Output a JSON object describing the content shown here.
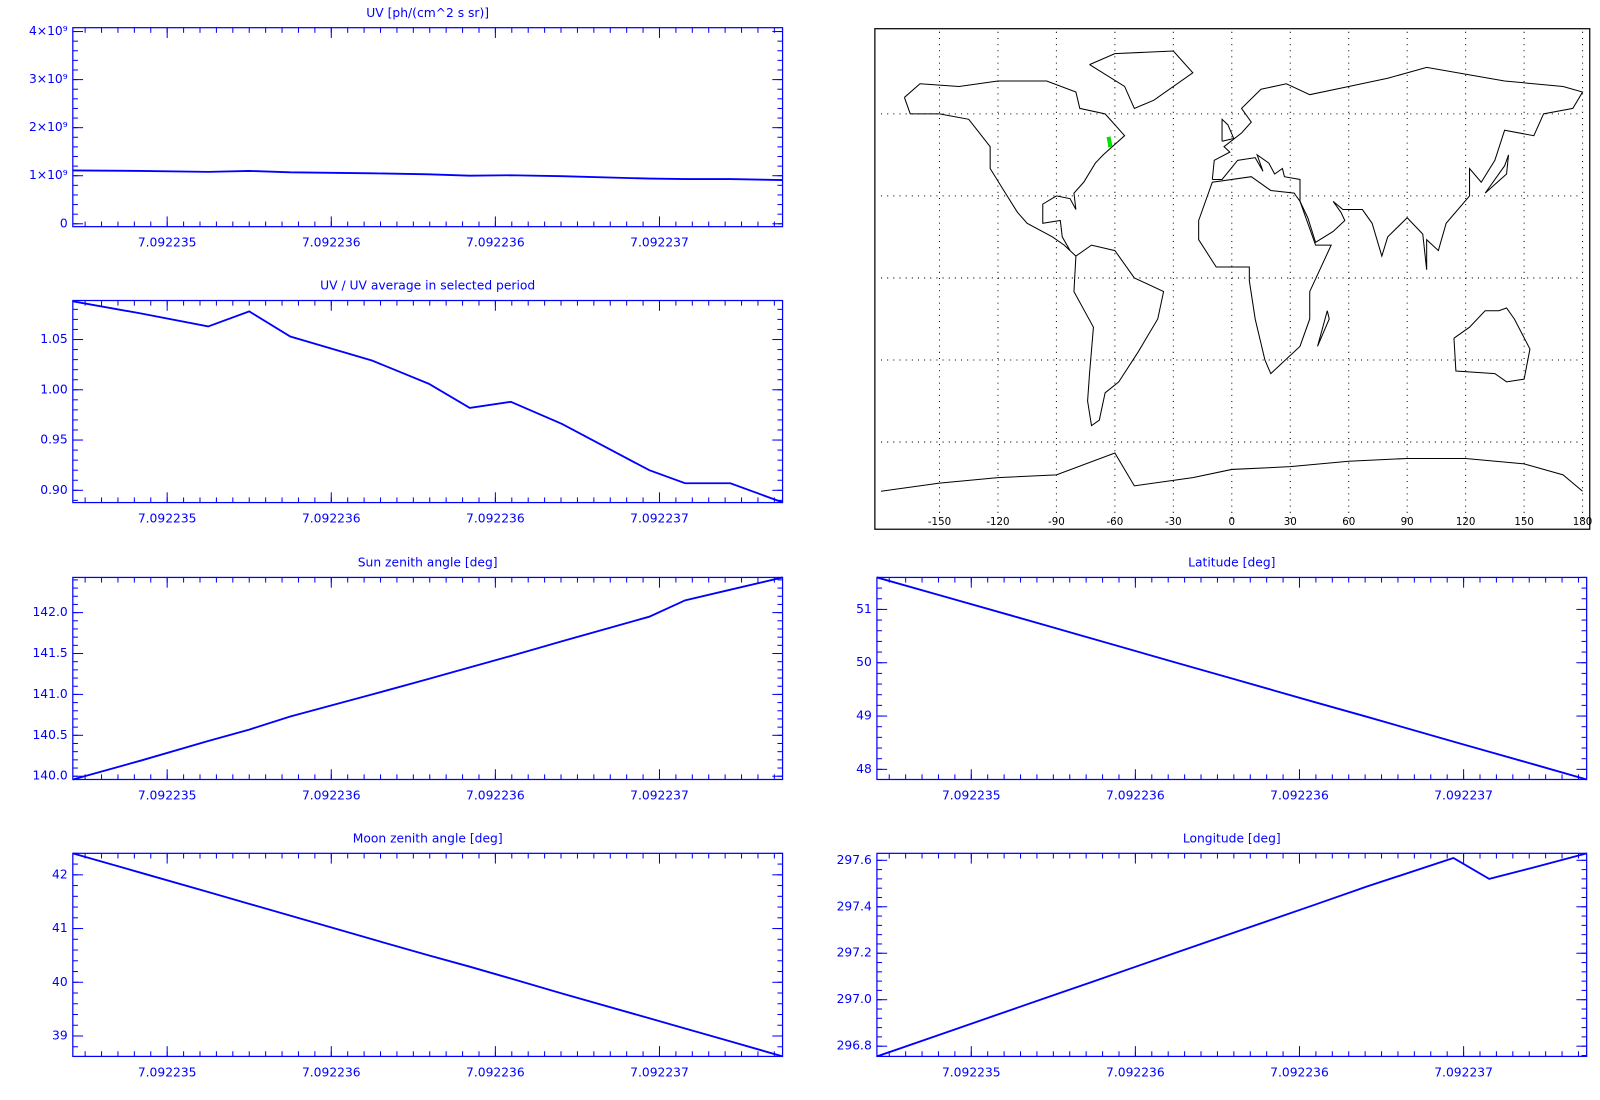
{
  "chart_data": [
    {
      "type": "line",
      "title": "UV [ph/(cm^2 s sr)]",
      "color": "#0000ff",
      "x": [
        7.0922347125,
        7.09223491875,
        7.092235125,
        7.09223525,
        7.092235375,
        7.092235625,
        7.092235797,
        7.092235922,
        7.092236047,
        7.092236203,
        7.092236469,
        7.092236578,
        7.092236716,
        7.092236875
      ],
      "values": [
        1110000000,
        1100000000,
        1080000000,
        1100000000,
        1070000000,
        1050000000,
        1030000000,
        1000000000,
        1010000000,
        990000000,
        940000000,
        930000000,
        930000000,
        910000000
      ],
      "xlim": [
        7.0922347125,
        7.092236875
      ],
      "xticks": [
        7.092235,
        {
          "value": 7.0922355,
          "label": "7.092236"
        },
        7.092236,
        {
          "value": 7.0922365,
          "label": "7.092237"
        }
      ],
      "ylim": [
        -60000000,
        4080000000
      ],
      "yticks": [
        0,
        {
          "value": 1000000000,
          "label": "1×10⁹"
        },
        {
          "value": 2000000000,
          "label": "2×10⁹"
        },
        {
          "value": 3000000000,
          "label": "3×10⁹"
        },
        {
          "value": 4000000000,
          "label": "4×10⁹"
        }
      ]
    },
    {
      "type": "line",
      "title": "UV / UV average in selected period",
      "color": "#0000ff",
      "x": [
        7.0922347125,
        7.09223491875,
        7.092235125,
        7.09223525,
        7.092235375,
        7.092235625,
        7.092235797,
        7.092235922,
        7.092236047,
        7.092236203,
        7.092236469,
        7.092236578,
        7.092236716,
        7.092236875
      ],
      "values": [
        1.088,
        1.076,
        1.063,
        1.078,
        1.053,
        1.029,
        1.006,
        0.982,
        0.988,
        0.966,
        0.92,
        0.907,
        0.907,
        0.888
      ],
      "xlim": [
        7.0922347125,
        7.092236875
      ],
      "xticks": [
        7.092235,
        {
          "value": 7.0922355,
          "label": "7.092236"
        },
        7.092236,
        {
          "value": 7.0922365,
          "label": "7.092237"
        }
      ],
      "ylim": [
        0.8878,
        1.0888
      ],
      "yticks": [
        {
          "value": 0.9,
          "label": "0.90"
        },
        0.95,
        {
          "value": 1,
          "label": "1.00"
        },
        1.05
      ]
    },
    {
      "type": "map",
      "xlim": [
        -180,
        180
      ],
      "ylim": [
        -90,
        90
      ],
      "grid": true,
      "xticks": [
        -150,
        -120,
        -90,
        -60,
        -30,
        0,
        30,
        60,
        90,
        120,
        150,
        180
      ],
      "track_color": "#00e000"
    },
    {
      "type": "line",
      "title": "Sun zenith angle [deg]",
      "color": "#0000ff",
      "x": [
        7.0922347125,
        7.09223491875,
        7.092235125,
        7.09223525,
        7.092235375,
        7.092235625,
        7.092235797,
        7.092235922,
        7.092236047,
        7.092236203,
        7.092236469,
        7.092236578,
        7.092236716,
        7.092236875
      ],
      "values": [
        139.96,
        140.19,
        140.43,
        140.57,
        140.73,
        141.0,
        141.19,
        141.33,
        141.47,
        141.65,
        141.95,
        142.15,
        142.28,
        142.43
      ],
      "xlim": [
        7.0922347125,
        7.092236875
      ],
      "xticks": [
        7.092235,
        {
          "value": 7.0922355,
          "label": "7.092236"
        },
        7.092236,
        {
          "value": 7.0922365,
          "label": "7.092237"
        }
      ],
      "ylim": [
        139.96,
        142.43
      ],
      "yticks": [
        {
          "value": 140,
          "label": "140.0"
        },
        140.5,
        {
          "value": 141,
          "label": "141.0"
        },
        141.5,
        {
          "value": 142,
          "label": "142.0"
        }
      ]
    },
    {
      "type": "line",
      "title": "Latitude [deg]",
      "color": "#0000ff",
      "x": [
        7.0922347125,
        7.09223491875,
        7.092235125,
        7.09223525,
        7.092235375,
        7.092235625,
        7.092235797,
        7.092235922,
        7.092236047,
        7.092236203,
        7.092236469,
        7.092236578,
        7.092236716,
        7.092236875
      ],
      "values": [
        51.6,
        51.24,
        50.88,
        50.66,
        50.44,
        50.0,
        49.7,
        49.48,
        49.26,
        48.99,
        48.52,
        48.33,
        48.09,
        47.81
      ],
      "xlim": [
        7.0922347125,
        7.092236875
      ],
      "xticks": [
        7.092235,
        {
          "value": 7.0922355,
          "label": "7.092236"
        },
        7.092236,
        {
          "value": 7.0922365,
          "label": "7.092237"
        }
      ],
      "ylim": [
        47.81,
        51.6
      ],
      "yticks": [
        48,
        49,
        50,
        51
      ]
    },
    {
      "type": "line",
      "title": "Moon zenith angle [deg]",
      "color": "#0000ff",
      "x": [
        7.0922347125,
        7.09223491875,
        7.092235125,
        7.09223525,
        7.092235375,
        7.092235625,
        7.092235797,
        7.092235922,
        7.092236047,
        7.092236203,
        7.092236469,
        7.092236578,
        7.092236716,
        7.092236875
      ],
      "values": [
        42.4,
        42.04,
        41.68,
        41.46,
        41.24,
        40.8,
        40.5,
        40.29,
        40.07,
        39.79,
        39.33,
        39.14,
        38.9,
        38.62
      ],
      "xlim": [
        7.0922347125,
        7.092236875
      ],
      "xticks": [
        7.092235,
        {
          "value": 7.0922355,
          "label": "7.092236"
        },
        7.092236,
        {
          "value": 7.0922365,
          "label": "7.092237"
        }
      ],
      "ylim": [
        38.62,
        42.4
      ],
      "yticks": [
        39,
        40,
        41,
        42
      ]
    },
    {
      "type": "line",
      "title": "Longitude [deg]",
      "color": "#0000ff",
      "x": [
        7.0922347125,
        7.09223491875,
        7.092235125,
        7.09223525,
        7.092235375,
        7.092235625,
        7.092235797,
        7.092235922,
        7.092236047,
        7.092236203,
        7.092236469,
        7.092236578,
        7.092236716,
        7.092236875
      ],
      "values": [
        296.756,
        296.857,
        296.958,
        297.019,
        297.08,
        297.203,
        297.287,
        297.348,
        297.409,
        297.486,
        297.61,
        297.52,
        297.57,
        297.63
      ],
      "xlim": [
        7.0922347125,
        7.092236875
      ],
      "xticks": [
        7.092235,
        {
          "value": 7.0922355,
          "label": "7.092236"
        },
        7.092236,
        {
          "value": 7.0922365,
          "label": "7.092237"
        }
      ],
      "ylim": [
        296.756,
        297.63
      ],
      "yticks": [
        296.8,
        {
          "value": 297,
          "label": "297.0"
        },
        297.2,
        297.4,
        297.6
      ]
    }
  ]
}
